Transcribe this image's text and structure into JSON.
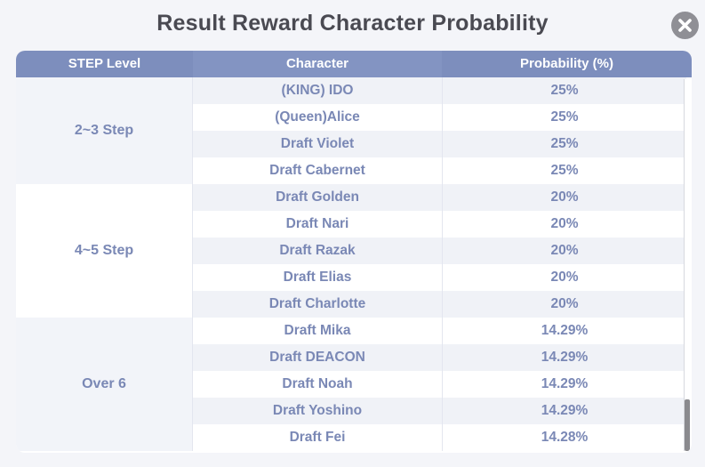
{
  "title": "Result Reward Character Probability",
  "headers": {
    "step": "STEP Level",
    "character": "Character",
    "probability": "Probability (%)"
  },
  "groups": [
    {
      "label": "2~3 Step",
      "rows": [
        {
          "character": "(KING) IDO",
          "probability": "25%"
        },
        {
          "character": "(Queen)Alice",
          "probability": "25%"
        },
        {
          "character": "Draft Violet",
          "probability": "25%"
        },
        {
          "character": "Draft Cabernet",
          "probability": "25%"
        }
      ]
    },
    {
      "label": "4~5 Step",
      "rows": [
        {
          "character": "Draft Golden",
          "probability": "20%"
        },
        {
          "character": "Draft Nari",
          "probability": "20%"
        },
        {
          "character": "Draft Razak",
          "probability": "20%"
        },
        {
          "character": "Draft Elias",
          "probability": "20%"
        },
        {
          "character": "Draft Charlotte",
          "probability": "20%"
        }
      ]
    },
    {
      "label": "Over 6",
      "rows": [
        {
          "character": "Draft Mika",
          "probability": "14.29%"
        },
        {
          "character": "Draft DEACON",
          "probability": "14.29%"
        },
        {
          "character": "Draft Noah",
          "probability": "14.29%"
        },
        {
          "character": "Draft Yoshino",
          "probability": "14.29%"
        },
        {
          "character": "Draft Fei",
          "probability": "14.28%"
        }
      ]
    }
  ],
  "icons": {
    "close": "close-icon"
  },
  "colors": {
    "header": "#7d8ebd",
    "text": "#7a88b5",
    "title": "#4a4a52"
  }
}
